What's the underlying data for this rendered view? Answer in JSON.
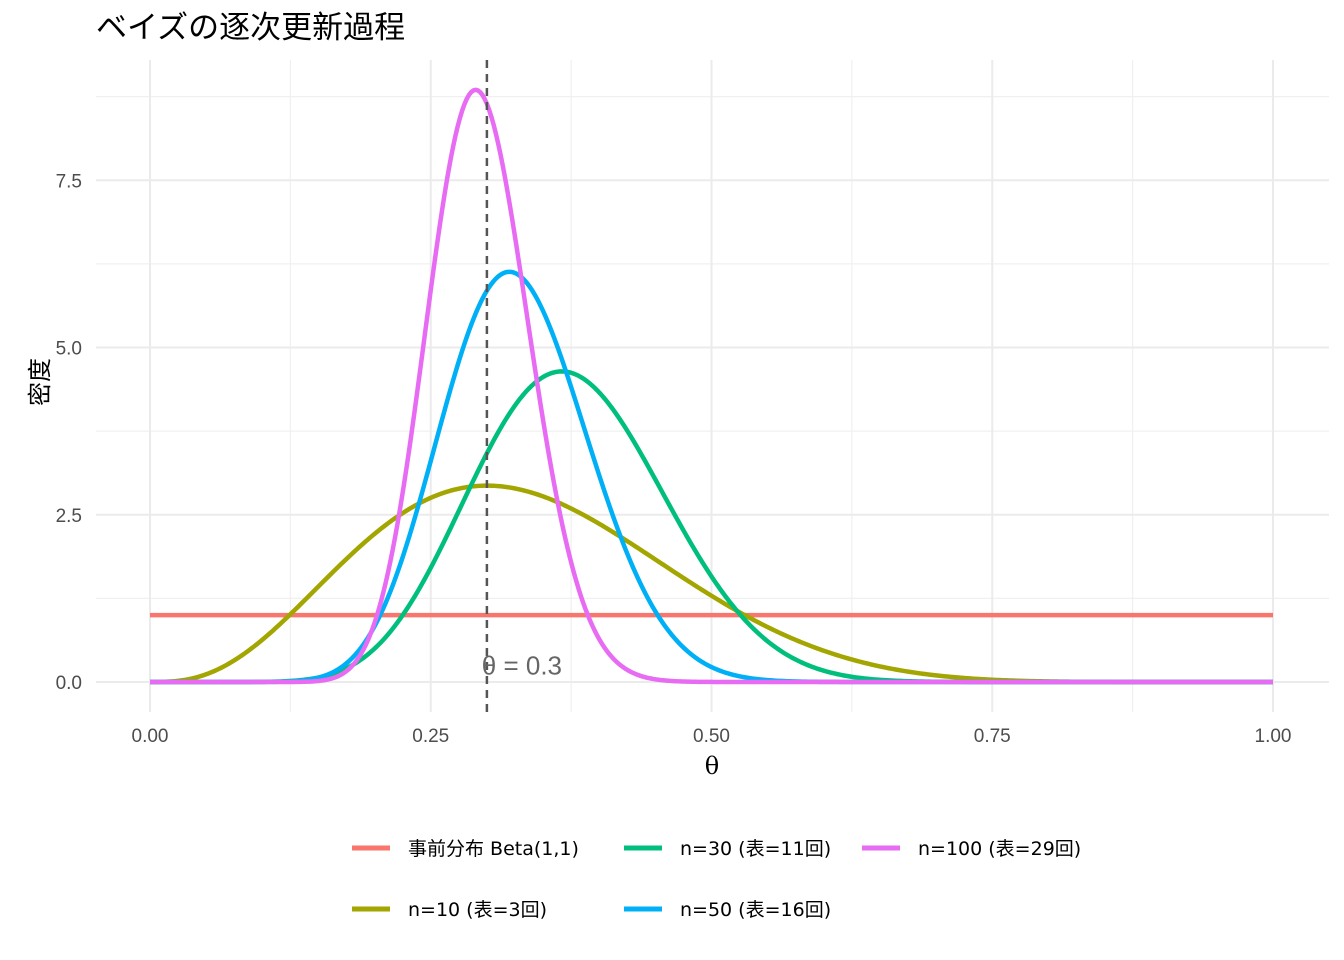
{
  "chart_data": {
    "type": "line",
    "title": "ベイズの逐次更新過程",
    "xlabel": "θ",
    "ylabel": "密度",
    "xlim": [
      0,
      1
    ],
    "ylim": [
      0,
      8.85
    ],
    "x_ticks": [
      0,
      0.25,
      0.5,
      0.75,
      1
    ],
    "x_tick_labels": [
      "0.00",
      "0.25",
      "0.50",
      "0.75",
      "1.00"
    ],
    "y_ticks": [
      0,
      2.5,
      5,
      7.5
    ],
    "y_tick_labels": [
      "0.0",
      "2.5",
      "5.0",
      "7.5"
    ],
    "grid": true,
    "legend_position": "bottom",
    "series": [
      {
        "name": "事前分布 Beta(1,1)",
        "color": "#F8766D",
        "beta": [
          1,
          1
        ]
      },
      {
        "name": "n=10 (表=3回)",
        "color": "#A3A500",
        "beta": [
          4,
          8
        ]
      },
      {
        "name": "n=30 (表=11回)",
        "color": "#00BF7D",
        "beta": [
          12,
          20
        ]
      },
      {
        "name": "n=50 (表=16回)",
        "color": "#00B0F6",
        "beta": [
          17,
          35
        ]
      },
      {
        "name": "n=100 (表=29回)",
        "color": "#E76BF3",
        "beta": [
          30,
          72
        ]
      }
    ],
    "reference_line": {
      "x": 0.3,
      "style": "dashed",
      "color": "#555555"
    },
    "annotations": [
      {
        "text": "θ = 0.3",
        "x": 0.3,
        "y": 0.25
      }
    ]
  }
}
